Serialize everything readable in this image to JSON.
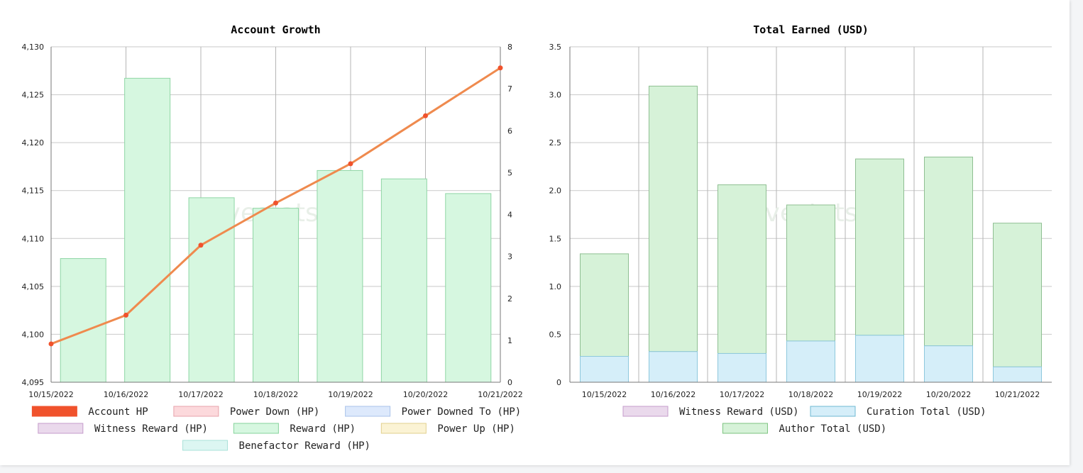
{
  "watermark": "hivestats.io",
  "chart_data": [
    {
      "type": "bar",
      "title": "Account Growth",
      "categories": [
        "10/15/2022",
        "10/16/2022",
        "10/17/2022",
        "10/18/2022",
        "10/19/2022",
        "10/20/2022",
        "10/21/2022"
      ],
      "ylim": [
        4095,
        4130
      ],
      "y_ticks": [
        "4,095",
        "4,100",
        "4,105",
        "4,110",
        "4,115",
        "4,120",
        "4,125",
        "4,130"
      ],
      "y2lim": [
        0,
        8
      ],
      "y2_ticks": [
        "0",
        "1",
        "2",
        "3",
        "4",
        "5",
        "6",
        "7",
        "8"
      ],
      "grid": true,
      "legend_placement": "bottom",
      "series": [
        {
          "name": "Account HP",
          "type": "line",
          "axis": "left",
          "color": "#f0522c",
          "line_color": "#ef8a4e",
          "values": [
            4099,
            4102,
            4109.3,
            4113.7,
            4117.8,
            4122.8,
            4127.8
          ]
        },
        {
          "name": "Reward (HP)",
          "type": "bar",
          "axis": "right",
          "color": "#d6f7e0",
          "border": "#8fd6a5",
          "values": [
            2.95,
            7.25,
            4.4,
            4.15,
            5.05,
            4.85,
            4.5
          ]
        }
      ],
      "legend": [
        {
          "label": "Account HP",
          "fill": "#f0522c",
          "stroke": "#f0522c"
        },
        {
          "label": "Power Down (HP)",
          "fill": "#fcd9dc",
          "stroke": "#e7a3ab"
        },
        {
          "label": "Power Downed To (HP)",
          "fill": "#dde9fc",
          "stroke": "#a9c2ea"
        },
        {
          "label": "Witness Reward (HP)",
          "fill": "#ead9ec",
          "stroke": "#c59ccb"
        },
        {
          "label": "Reward (HP)",
          "fill": "#d6f7e0",
          "stroke": "#86d39b"
        },
        {
          "label": "Power Up (HP)",
          "fill": "#fbf3d4",
          "stroke": "#e2d08e"
        },
        {
          "label": "Benefactor Reward (HP)",
          "fill": "#dcf6f2",
          "stroke": "#a9e2d9"
        }
      ]
    },
    {
      "type": "bar",
      "title": "Total Earned (USD)",
      "categories": [
        "10/15/2022",
        "10/16/2022",
        "10/17/2022",
        "10/18/2022",
        "10/19/2022",
        "10/20/2022",
        "10/21/2022"
      ],
      "ylim": [
        0,
        3.5
      ],
      "y_ticks": [
        "0",
        "0.5",
        "1.0",
        "1.5",
        "2.0",
        "2.5",
        "3.0",
        "3.5"
      ],
      "grid": true,
      "stacked": true,
      "legend_placement": "bottom",
      "series": [
        {
          "name": "Curation Total (USD)",
          "color": "#d5eef9",
          "border": "#8ec8dd",
          "values": [
            0.27,
            0.32,
            0.3,
            0.43,
            0.49,
            0.38,
            0.16
          ]
        },
        {
          "name": "Author Total (USD)",
          "color": "#d6f2d8",
          "border": "#8fbf92",
          "values": [
            1.07,
            2.77,
            1.76,
            1.42,
            1.84,
            1.97,
            1.5
          ]
        }
      ],
      "legend": [
        {
          "label": "Witness Reward (USD)",
          "fill": "#ead9ec",
          "stroke": "#c59ccb"
        },
        {
          "label": "Curation Total (USD)",
          "fill": "#d5eef9",
          "stroke": "#6fb8d2"
        },
        {
          "label": "Author Total (USD)",
          "fill": "#d6f2d8",
          "stroke": "#7cc37f"
        }
      ]
    }
  ]
}
